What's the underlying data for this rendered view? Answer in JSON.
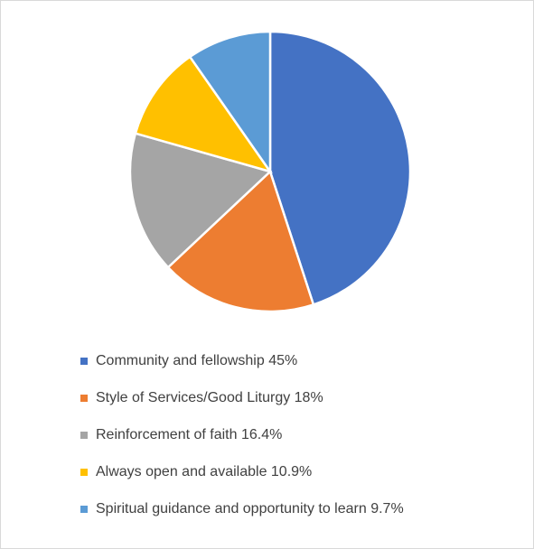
{
  "chart_data": {
    "type": "pie",
    "categories": [
      "Community and fellowship 45%",
      "Style of Services/Good Liturgy 18%",
      "Reinforcement of faith 16.4%",
      "Always open and available 10.9%",
      "Spiritual guidance and opportunity to learn 9.7%"
    ],
    "values": [
      45,
      18,
      16.4,
      10.9,
      9.7
    ],
    "colors": [
      "#4472c4",
      "#ed7d31",
      "#a5a5a5",
      "#ffc000",
      "#5b9bd5"
    ],
    "legend": "bottom"
  }
}
